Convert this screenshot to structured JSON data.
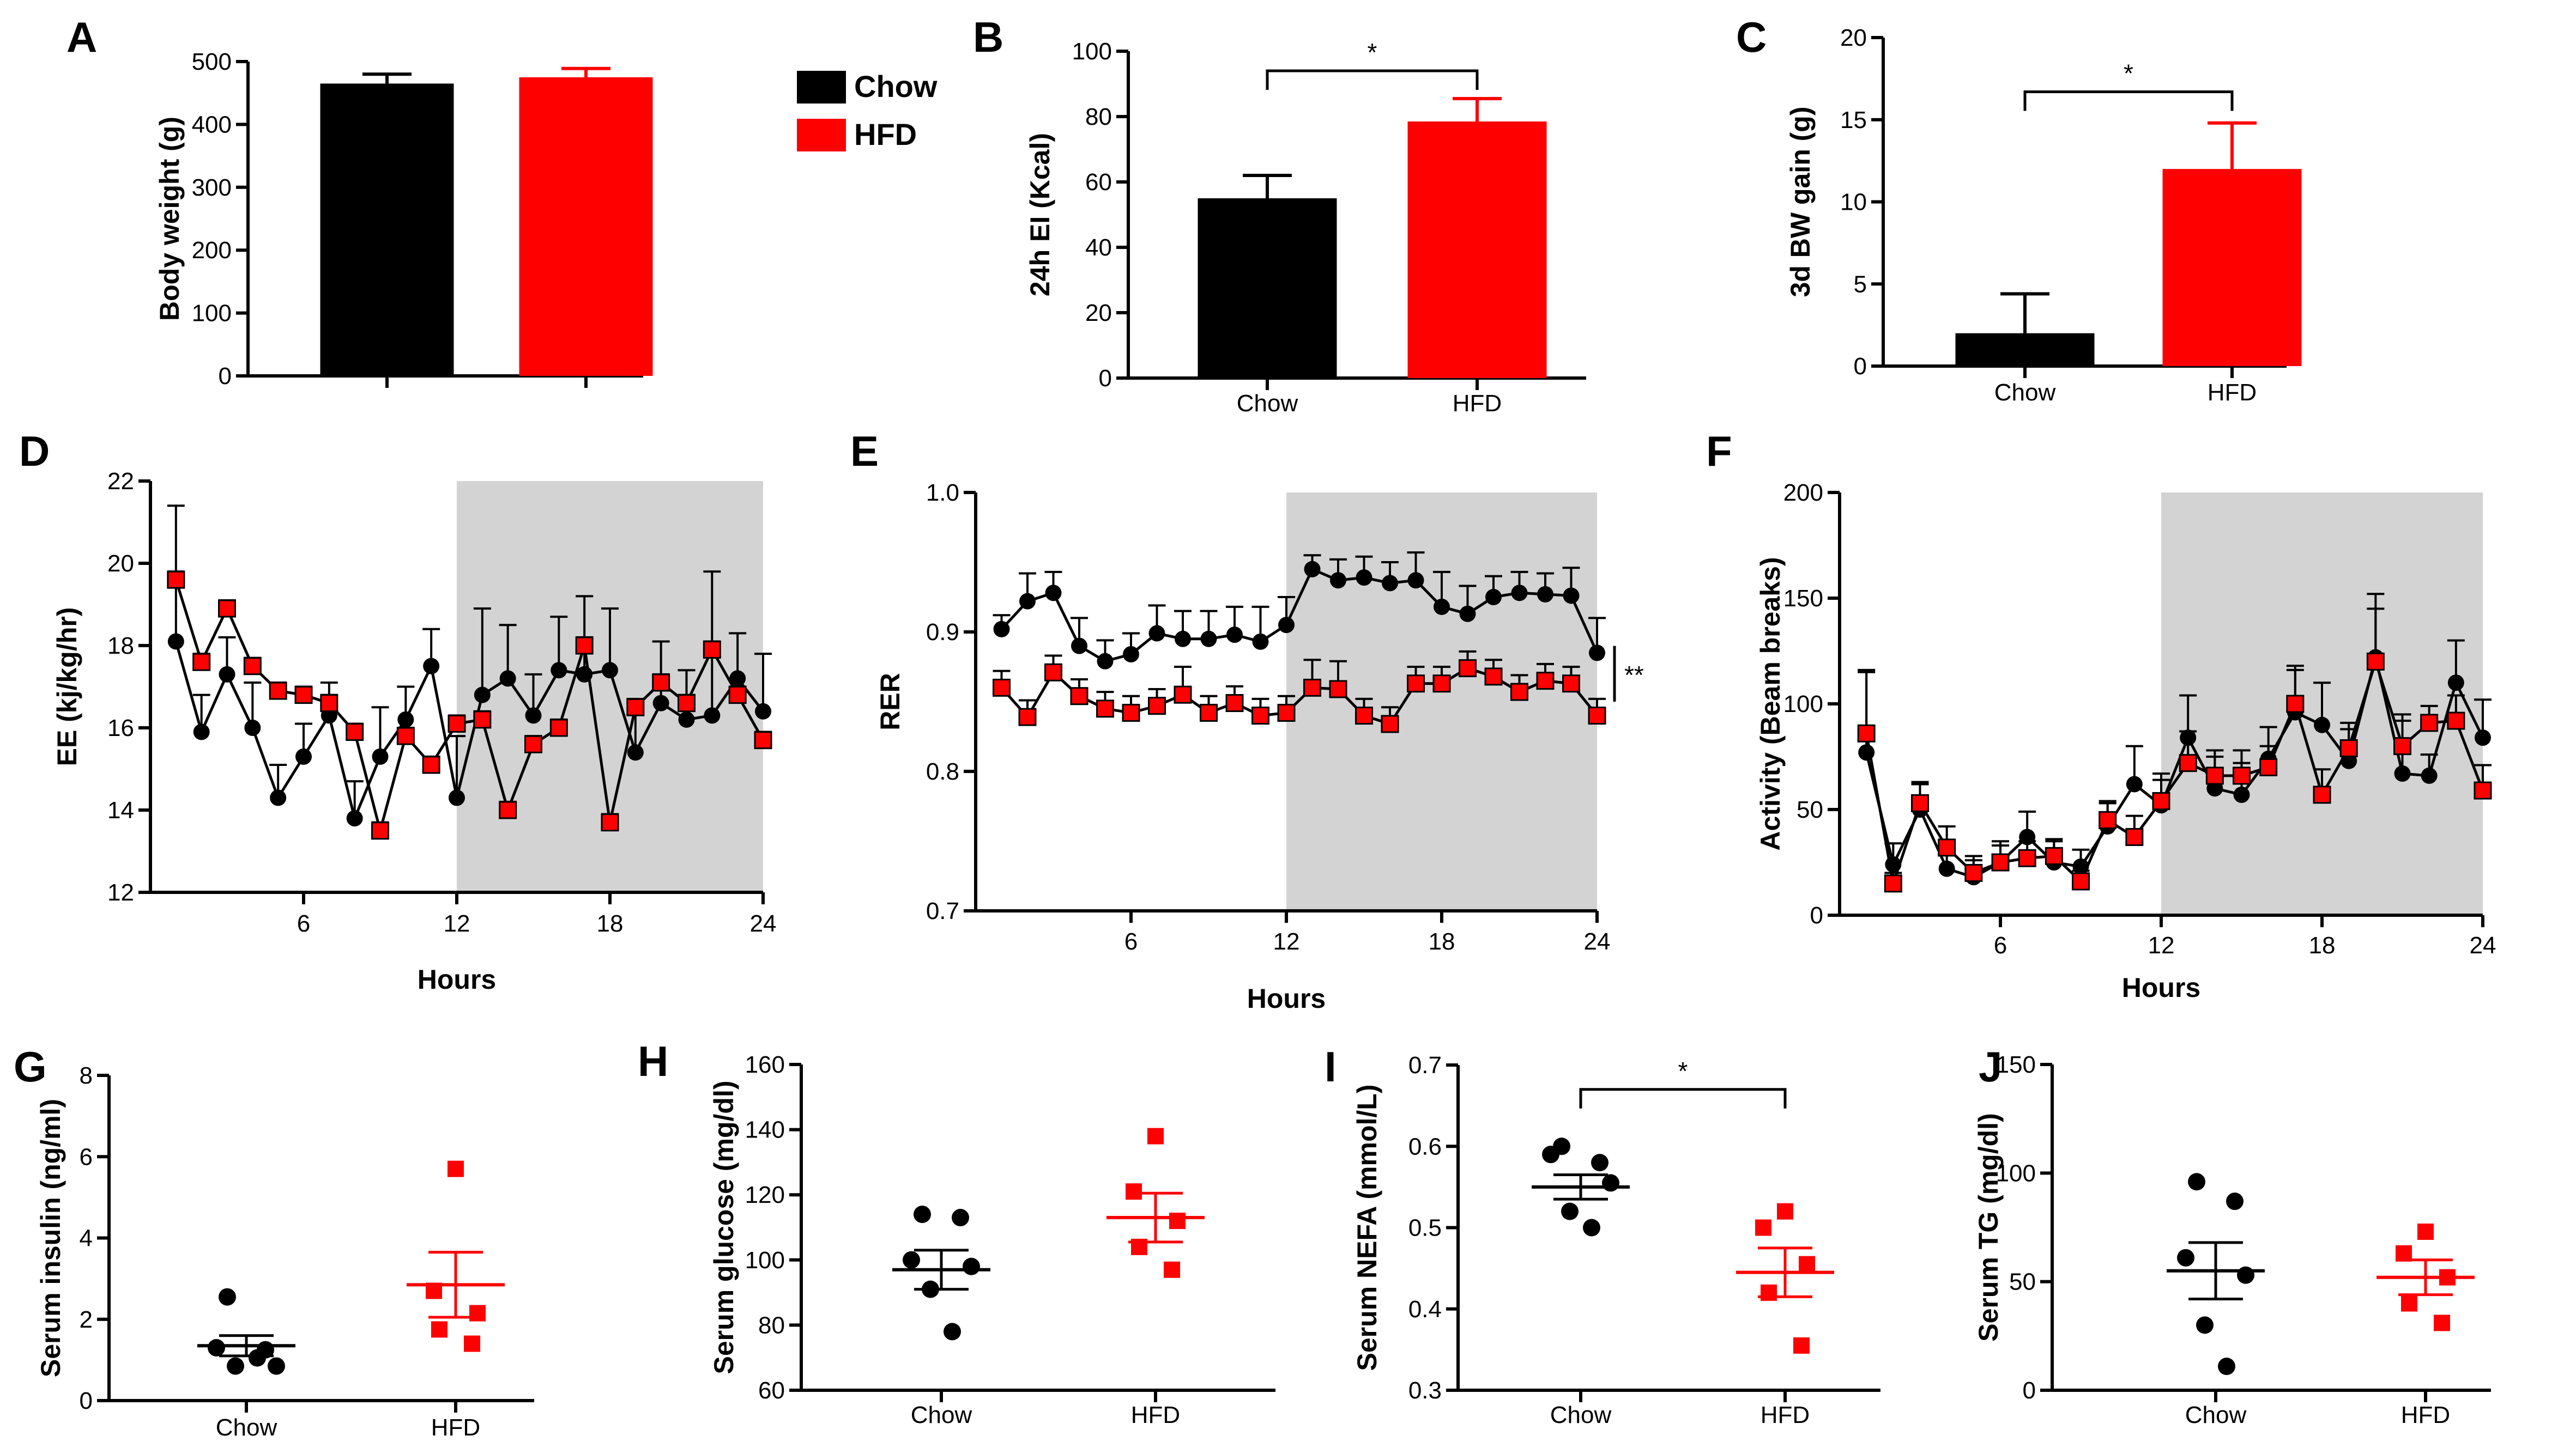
{
  "colors": {
    "chow": "#000000",
    "hfd": "#ff0000",
    "dark_phase": "#d3d3d3"
  },
  "legend": {
    "items": [
      {
        "label": "Chow",
        "color": "#000000"
      },
      {
        "label": "HFD",
        "color": "#ff0000"
      }
    ]
  },
  "chart_data": [
    {
      "panel": "A",
      "type": "bar",
      "categories": [
        "Chow",
        "HFD"
      ],
      "values": [
        465,
        475
      ],
      "errors": [
        15,
        14
      ],
      "ylabel": "Body weight (g)",
      "ylim": [
        0,
        500
      ],
      "yticks": [
        0,
        100,
        200,
        300,
        400,
        500
      ],
      "show_category_labels": false
    },
    {
      "panel": "B",
      "type": "bar",
      "categories": [
        "Chow",
        "HFD"
      ],
      "values": [
        55,
        78.5
      ],
      "errors": [
        7,
        7
      ],
      "ylabel": "24h EI (Kcal)",
      "ylim": [
        0,
        100
      ],
      "yticks": [
        0,
        20,
        40,
        60,
        80,
        100
      ],
      "significance": {
        "label": "*",
        "y": 94
      }
    },
    {
      "panel": "C",
      "type": "bar",
      "categories": [
        "Chow",
        "HFD"
      ],
      "values": [
        2,
        12
      ],
      "errors": [
        2.4,
        2.8
      ],
      "ylabel": "3d BW gain (g)",
      "ylim": [
        0,
        20
      ],
      "yticks": [
        0,
        5,
        10,
        15,
        20
      ],
      "significance": {
        "label": "*",
        "y": 16.7
      }
    },
    {
      "panel": "D",
      "type": "line",
      "xlabel": "Hours",
      "ylabel": "EE (kj/kg/hr)",
      "xlim": [
        0,
        24
      ],
      "ylim": [
        12,
        22
      ],
      "xticks": [
        6,
        12,
        18,
        24
      ],
      "yticks": [
        12,
        14,
        16,
        18,
        20,
        22
      ],
      "shaded_x": [
        12,
        24
      ],
      "x": [
        1,
        2,
        3,
        4,
        5,
        6,
        7,
        8,
        9,
        10,
        11,
        12,
        13,
        14,
        15,
        16,
        17,
        18,
        19,
        20,
        21,
        22,
        23,
        24
      ],
      "series": [
        {
          "name": "Chow",
          "values": [
            18.1,
            15.9,
            17.3,
            16,
            14.3,
            15.3,
            16.3,
            13.8,
            15.3,
            16.2,
            17.5,
            14.3,
            16.8,
            17.2,
            16.3,
            17.4,
            17.3,
            17.4,
            15.4,
            16.6,
            16.2,
            16.3,
            17.2,
            16.4
          ],
          "errors": [
            3.3,
            0.9,
            0.9,
            1.1,
            0.8,
            0.8,
            0.8,
            0.9,
            1.2,
            0.8,
            0.9,
            1.5,
            2.1,
            1.3,
            1,
            1.3,
            1.9,
            1.5,
            1.3,
            1.5,
            1.2,
            3.5,
            1.1,
            1.4
          ]
        },
        {
          "name": "HFD",
          "values": [
            19.6,
            17.6,
            18.9,
            17.5,
            16.9,
            16.8,
            16.6,
            15.9,
            13.5,
            15.8,
            15.1,
            16.1,
            16.2,
            14,
            15.6,
            16,
            18,
            13.7,
            16.5,
            17.1,
            16.6,
            17.9,
            16.8,
            15.7
          ],
          "errors": [
            0.2,
            0.2,
            0.2,
            0.2,
            0.2,
            0.2,
            0.2,
            0.2,
            0.2,
            0.2,
            0.2,
            0.2,
            0.2,
            0.2,
            0.2,
            0.2,
            0.2,
            0.2,
            0.2,
            0.2,
            0.2,
            0.2,
            0.2,
            0.2
          ]
        }
      ]
    },
    {
      "panel": "E",
      "type": "line",
      "xlabel": "Hours",
      "ylabel": "RER",
      "xlim": [
        0,
        24
      ],
      "ylim": [
        0.7,
        1.0
      ],
      "xticks": [
        6,
        12,
        18,
        24
      ],
      "yticks": [
        0.7,
        0.8,
        0.9,
        1.0
      ],
      "shaded_x": [
        12,
        24
      ],
      "significance": {
        "label": "**",
        "y_range": [
          0.85,
          0.89
        ]
      },
      "x": [
        1,
        2,
        3,
        4,
        5,
        6,
        7,
        8,
        9,
        10,
        11,
        12,
        13,
        14,
        15,
        16,
        17,
        18,
        19,
        20,
        21,
        22,
        23,
        24
      ],
      "series": [
        {
          "name": "Chow",
          "values": [
            0.902,
            0.922,
            0.928,
            0.89,
            0.879,
            0.884,
            0.899,
            0.895,
            0.895,
            0.898,
            0.893,
            0.905,
            0.945,
            0.937,
            0.939,
            0.935,
            0.937,
            0.918,
            0.913,
            0.925,
            0.928,
            0.927,
            0.926,
            0.885
          ],
          "errors": [
            0.01,
            0.02,
            0.015,
            0.02,
            0.015,
            0.015,
            0.02,
            0.02,
            0.02,
            0.02,
            0.025,
            0.02,
            0.01,
            0.015,
            0.015,
            0.015,
            0.02,
            0.025,
            0.02,
            0.015,
            0.015,
            0.015,
            0.02,
            0.025
          ]
        },
        {
          "name": "HFD",
          "values": [
            0.86,
            0.839,
            0.871,
            0.854,
            0.845,
            0.842,
            0.847,
            0.855,
            0.842,
            0.849,
            0.84,
            0.842,
            0.86,
            0.859,
            0.84,
            0.834,
            0.863,
            0.863,
            0.874,
            0.868,
            0.857,
            0.865,
            0.863,
            0.84
          ],
          "errors": [
            0.012,
            0.012,
            0.012,
            0.012,
            0.012,
            0.012,
            0.012,
            0.02,
            0.012,
            0.012,
            0.012,
            0.012,
            0.02,
            0.02,
            0.012,
            0.012,
            0.012,
            0.012,
            0.012,
            0.012,
            0.012,
            0.012,
            0.012,
            0.012
          ]
        }
      ]
    },
    {
      "panel": "F",
      "type": "line",
      "xlabel": "Hours",
      "ylabel": "Activity (Beam breaks)",
      "xlim": [
        0,
        24
      ],
      "ylim": [
        0,
        200
      ],
      "xticks": [
        6,
        12,
        18,
        24
      ],
      "yticks": [
        0,
        50,
        100,
        150,
        200
      ],
      "shaded_x": [
        12,
        24
      ],
      "x": [
        1,
        2,
        3,
        4,
        5,
        6,
        7,
        8,
        9,
        10,
        11,
        12,
        13,
        14,
        15,
        16,
        17,
        18,
        19,
        20,
        21,
        22,
        23,
        24
      ],
      "series": [
        {
          "name": "Chow",
          "values": [
            77,
            24,
            50,
            22,
            18,
            25,
            37,
            25,
            23,
            42,
            62,
            52,
            84,
            60,
            57,
            74,
            96,
            90,
            73,
            122,
            67,
            66,
            110,
            84
          ],
          "errors": [
            38,
            10,
            12,
            10,
            8,
            10,
            12,
            10,
            8,
            12,
            18,
            15,
            20,
            15,
            15,
            15,
            20,
            20,
            15,
            30,
            25,
            10,
            20,
            18
          ]
        },
        {
          "name": "HFD",
          "values": [
            86,
            15,
            53,
            32,
            20,
            25,
            27,
            28,
            16,
            45,
            37,
            54,
            72,
            66,
            66,
            70,
            100,
            57,
            79,
            120,
            80,
            91,
            92,
            59
          ],
          "errors": [
            30,
            5,
            10,
            10,
            8,
            8,
            8,
            8,
            5,
            8,
            10,
            10,
            15,
            12,
            12,
            10,
            18,
            12,
            12,
            25,
            15,
            8,
            12,
            12
          ]
        }
      ]
    },
    {
      "panel": "G",
      "type": "scatter",
      "categories": [
        "Chow",
        "HFD"
      ],
      "ylabel": "Serum insulin (ng/ml)",
      "ylim": [
        0,
        8
      ],
      "yticks": [
        0,
        2,
        4,
        6,
        8
      ],
      "groups": [
        {
          "name": "Chow",
          "points": [
            2.55,
            1.25,
            1.3,
            0.85,
            0.85,
            1.05
          ],
          "mean": 1.35,
          "sem": 0.25
        },
        {
          "name": "HFD",
          "points": [
            5.7,
            2.7,
            2.15,
            1.75,
            1.4
          ],
          "mean": 2.85,
          "sem": 0.8
        }
      ]
    },
    {
      "panel": "H",
      "type": "scatter",
      "categories": [
        "Chow",
        "HFD"
      ],
      "ylabel": "Serum glucose (mg/dl)",
      "ylim": [
        60,
        160
      ],
      "yticks": [
        60,
        80,
        100,
        120,
        140,
        160
      ],
      "groups": [
        {
          "name": "Chow",
          "points": [
            114,
            113,
            100,
            98,
            91,
            78
          ],
          "mean": 97,
          "sem": 6
        },
        {
          "name": "HFD",
          "points": [
            138,
            121,
            112,
            104,
            97
          ],
          "mean": 113,
          "sem": 7.5
        }
      ]
    },
    {
      "panel": "I",
      "type": "scatter",
      "categories": [
        "Chow",
        "HFD"
      ],
      "ylabel": "Serum NEFA (mmol/L)",
      "ylim": [
        0.3,
        0.7
      ],
      "yticks": [
        0.3,
        0.4,
        0.5,
        0.6,
        0.7
      ],
      "significance": {
        "label": "*",
        "y": 0.67
      },
      "groups": [
        {
          "name": "Chow",
          "points": [
            0.6,
            0.58,
            0.59,
            0.555,
            0.52,
            0.5
          ],
          "mean": 0.55,
          "sem": 0.015
        },
        {
          "name": "HFD",
          "points": [
            0.52,
            0.5,
            0.455,
            0.42,
            0.355
          ],
          "mean": 0.445,
          "sem": 0.03
        }
      ]
    },
    {
      "panel": "J",
      "type": "scatter",
      "categories": [
        "Chow",
        "HFD"
      ],
      "ylabel": "Serum TG (mg/dl)",
      "ylim": [
        0,
        150
      ],
      "yticks": [
        0,
        50,
        100,
        150
      ],
      "groups": [
        {
          "name": "Chow",
          "points": [
            96,
            87,
            61,
            53,
            30,
            11
          ],
          "mean": 55,
          "sem": 13
        },
        {
          "name": "HFD",
          "points": [
            73,
            63,
            52,
            40,
            31
          ],
          "mean": 52,
          "sem": 8
        }
      ]
    }
  ]
}
